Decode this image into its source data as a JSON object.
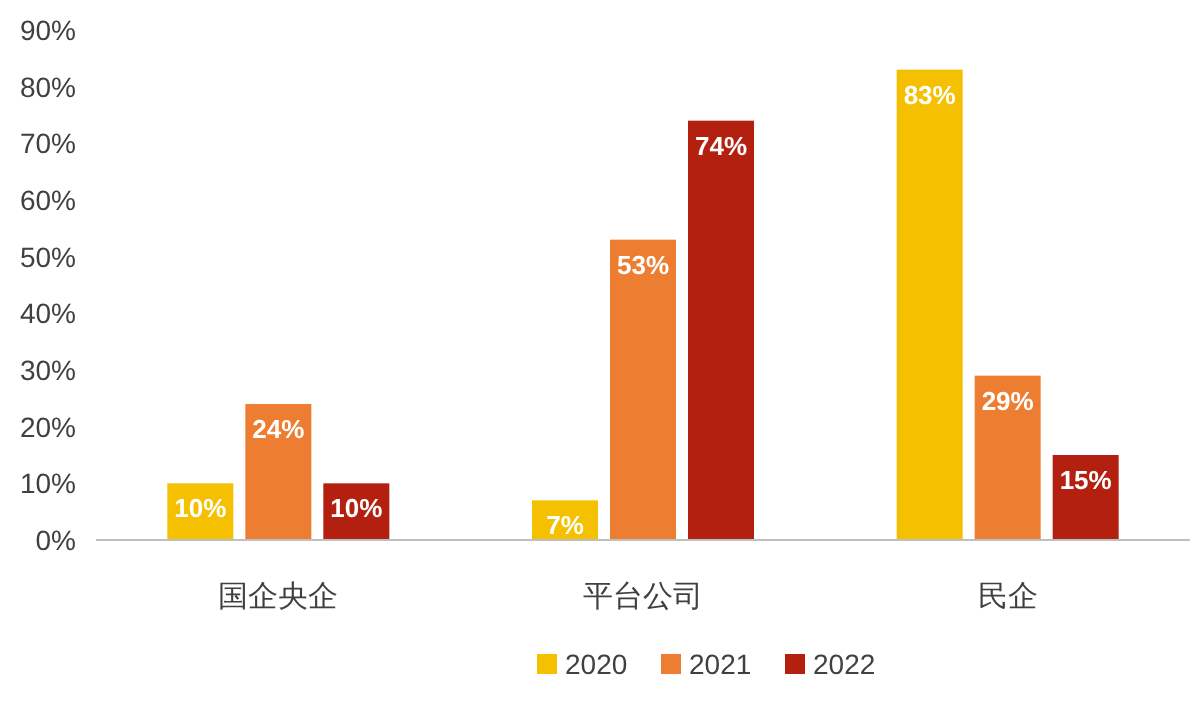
{
  "chart_data": {
    "type": "bar",
    "categories": [
      "国企央企",
      "平台公司",
      "民企"
    ],
    "series": [
      {
        "name": "2020",
        "color": "#f5c000",
        "values": [
          10,
          7,
          83
        ],
        "value_labels": [
          "10%",
          "7%",
          "83%"
        ]
      },
      {
        "name": "2021",
        "color": "#ed7d31",
        "values": [
          24,
          53,
          29
        ],
        "value_labels": [
          "24%",
          "53%",
          "29%"
        ]
      },
      {
        "name": "2022",
        "color": "#b32010",
        "values": [
          10,
          74,
          15
        ],
        "value_labels": [
          "10%",
          "74%",
          "15%"
        ]
      }
    ],
    "ylim": [
      0,
      90
    ],
    "yticks": [
      {
        "value": 0,
        "label": "0%"
      },
      {
        "value": 10,
        "label": "10%"
      },
      {
        "value": 20,
        "label": "20%"
      },
      {
        "value": 30,
        "label": "30%"
      },
      {
        "value": 40,
        "label": "40%"
      },
      {
        "value": 50,
        "label": "50%"
      },
      {
        "value": 60,
        "label": "60%"
      },
      {
        "value": 70,
        "label": "70%"
      },
      {
        "value": 80,
        "label": "80%"
      },
      {
        "value": 90,
        "label": "90%"
      }
    ],
    "grid": false,
    "legend": "bottom"
  }
}
